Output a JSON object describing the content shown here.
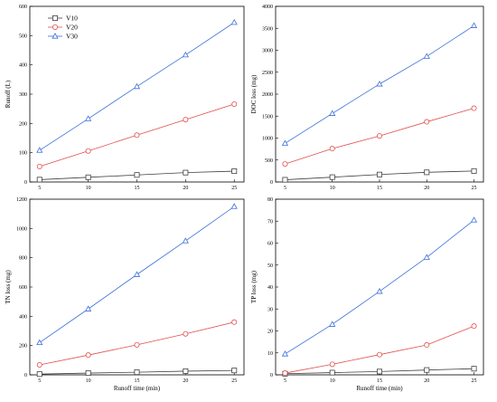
{
  "chart_data": [
    {
      "type": "line",
      "x": [
        5,
        10,
        15,
        20,
        25
      ],
      "xlabel": "",
      "ylabel": "Runoff  (L)",
      "xlim": [
        4,
        26
      ],
      "ylim": [
        0,
        600
      ],
      "yticks": [
        0,
        100,
        200,
        300,
        400,
        500,
        600
      ],
      "legend": "top-left",
      "grid": false,
      "series": [
        {
          "name": "V10",
          "values": [
            8,
            16,
            24,
            32,
            37
          ]
        },
        {
          "name": "V20",
          "values": [
            53,
            106,
            160,
            213,
            266
          ]
        },
        {
          "name": "V30",
          "values": [
            108,
            216,
            326,
            434,
            545
          ]
        }
      ]
    },
    {
      "type": "line",
      "x": [
        5,
        10,
        15,
        20,
        25
      ],
      "xlabel": "",
      "ylabel": "DOC loss (mg)",
      "xlim": [
        4,
        26
      ],
      "ylim": [
        0,
        4000
      ],
      "yticks": [
        0,
        500,
        1000,
        1500,
        2000,
        2500,
        3000,
        3500,
        4000
      ],
      "grid": false,
      "series": [
        {
          "name": "V10",
          "values": [
            50,
            110,
            170,
            220,
            250
          ]
        },
        {
          "name": "V20",
          "values": [
            410,
            760,
            1050,
            1370,
            1680
          ]
        },
        {
          "name": "V30",
          "values": [
            880,
            1560,
            2230,
            2860,
            3560
          ]
        }
      ]
    },
    {
      "type": "line",
      "x": [
        5,
        10,
        15,
        20,
        25
      ],
      "xlabel": "Runoff time (min)",
      "ylabel": "TN loss (mg)",
      "xlim": [
        4,
        26
      ],
      "ylim": [
        0,
        1200
      ],
      "yticks": [
        0,
        200,
        400,
        600,
        800,
        1000,
        1200
      ],
      "grid": false,
      "series": [
        {
          "name": "V10",
          "values": [
            5,
            12,
            18,
            25,
            30
          ]
        },
        {
          "name": "V20",
          "values": [
            68,
            135,
            205,
            280,
            360
          ]
        },
        {
          "name": "V30",
          "values": [
            220,
            450,
            685,
            915,
            1150
          ]
        }
      ]
    },
    {
      "type": "line",
      "x": [
        5,
        10,
        15,
        20,
        25
      ],
      "xlabel": "Runoff time (min)",
      "ylabel": "TP loss (mg)",
      "xlim": [
        4,
        26
      ],
      "ylim": [
        0,
        80
      ],
      "yticks": [
        0,
        10,
        20,
        30,
        40,
        50,
        60,
        70,
        80
      ],
      "grid": false,
      "series": [
        {
          "name": "V10",
          "values": [
            0.5,
            1.0,
            1.5,
            2.2,
            2.8
          ]
        },
        {
          "name": "V20",
          "values": [
            0.8,
            4.8,
            9.2,
            13.6,
            22.2
          ]
        },
        {
          "name": "V30",
          "values": [
            9.5,
            23.0,
            38.0,
            53.5,
            70.5
          ]
        }
      ]
    }
  ],
  "colors": {
    "V10": "#404040",
    "V20": "#e05050",
    "V30": "#3a6fd8"
  },
  "markers": {
    "V10": "square",
    "V20": "circle",
    "V30": "triangle"
  }
}
